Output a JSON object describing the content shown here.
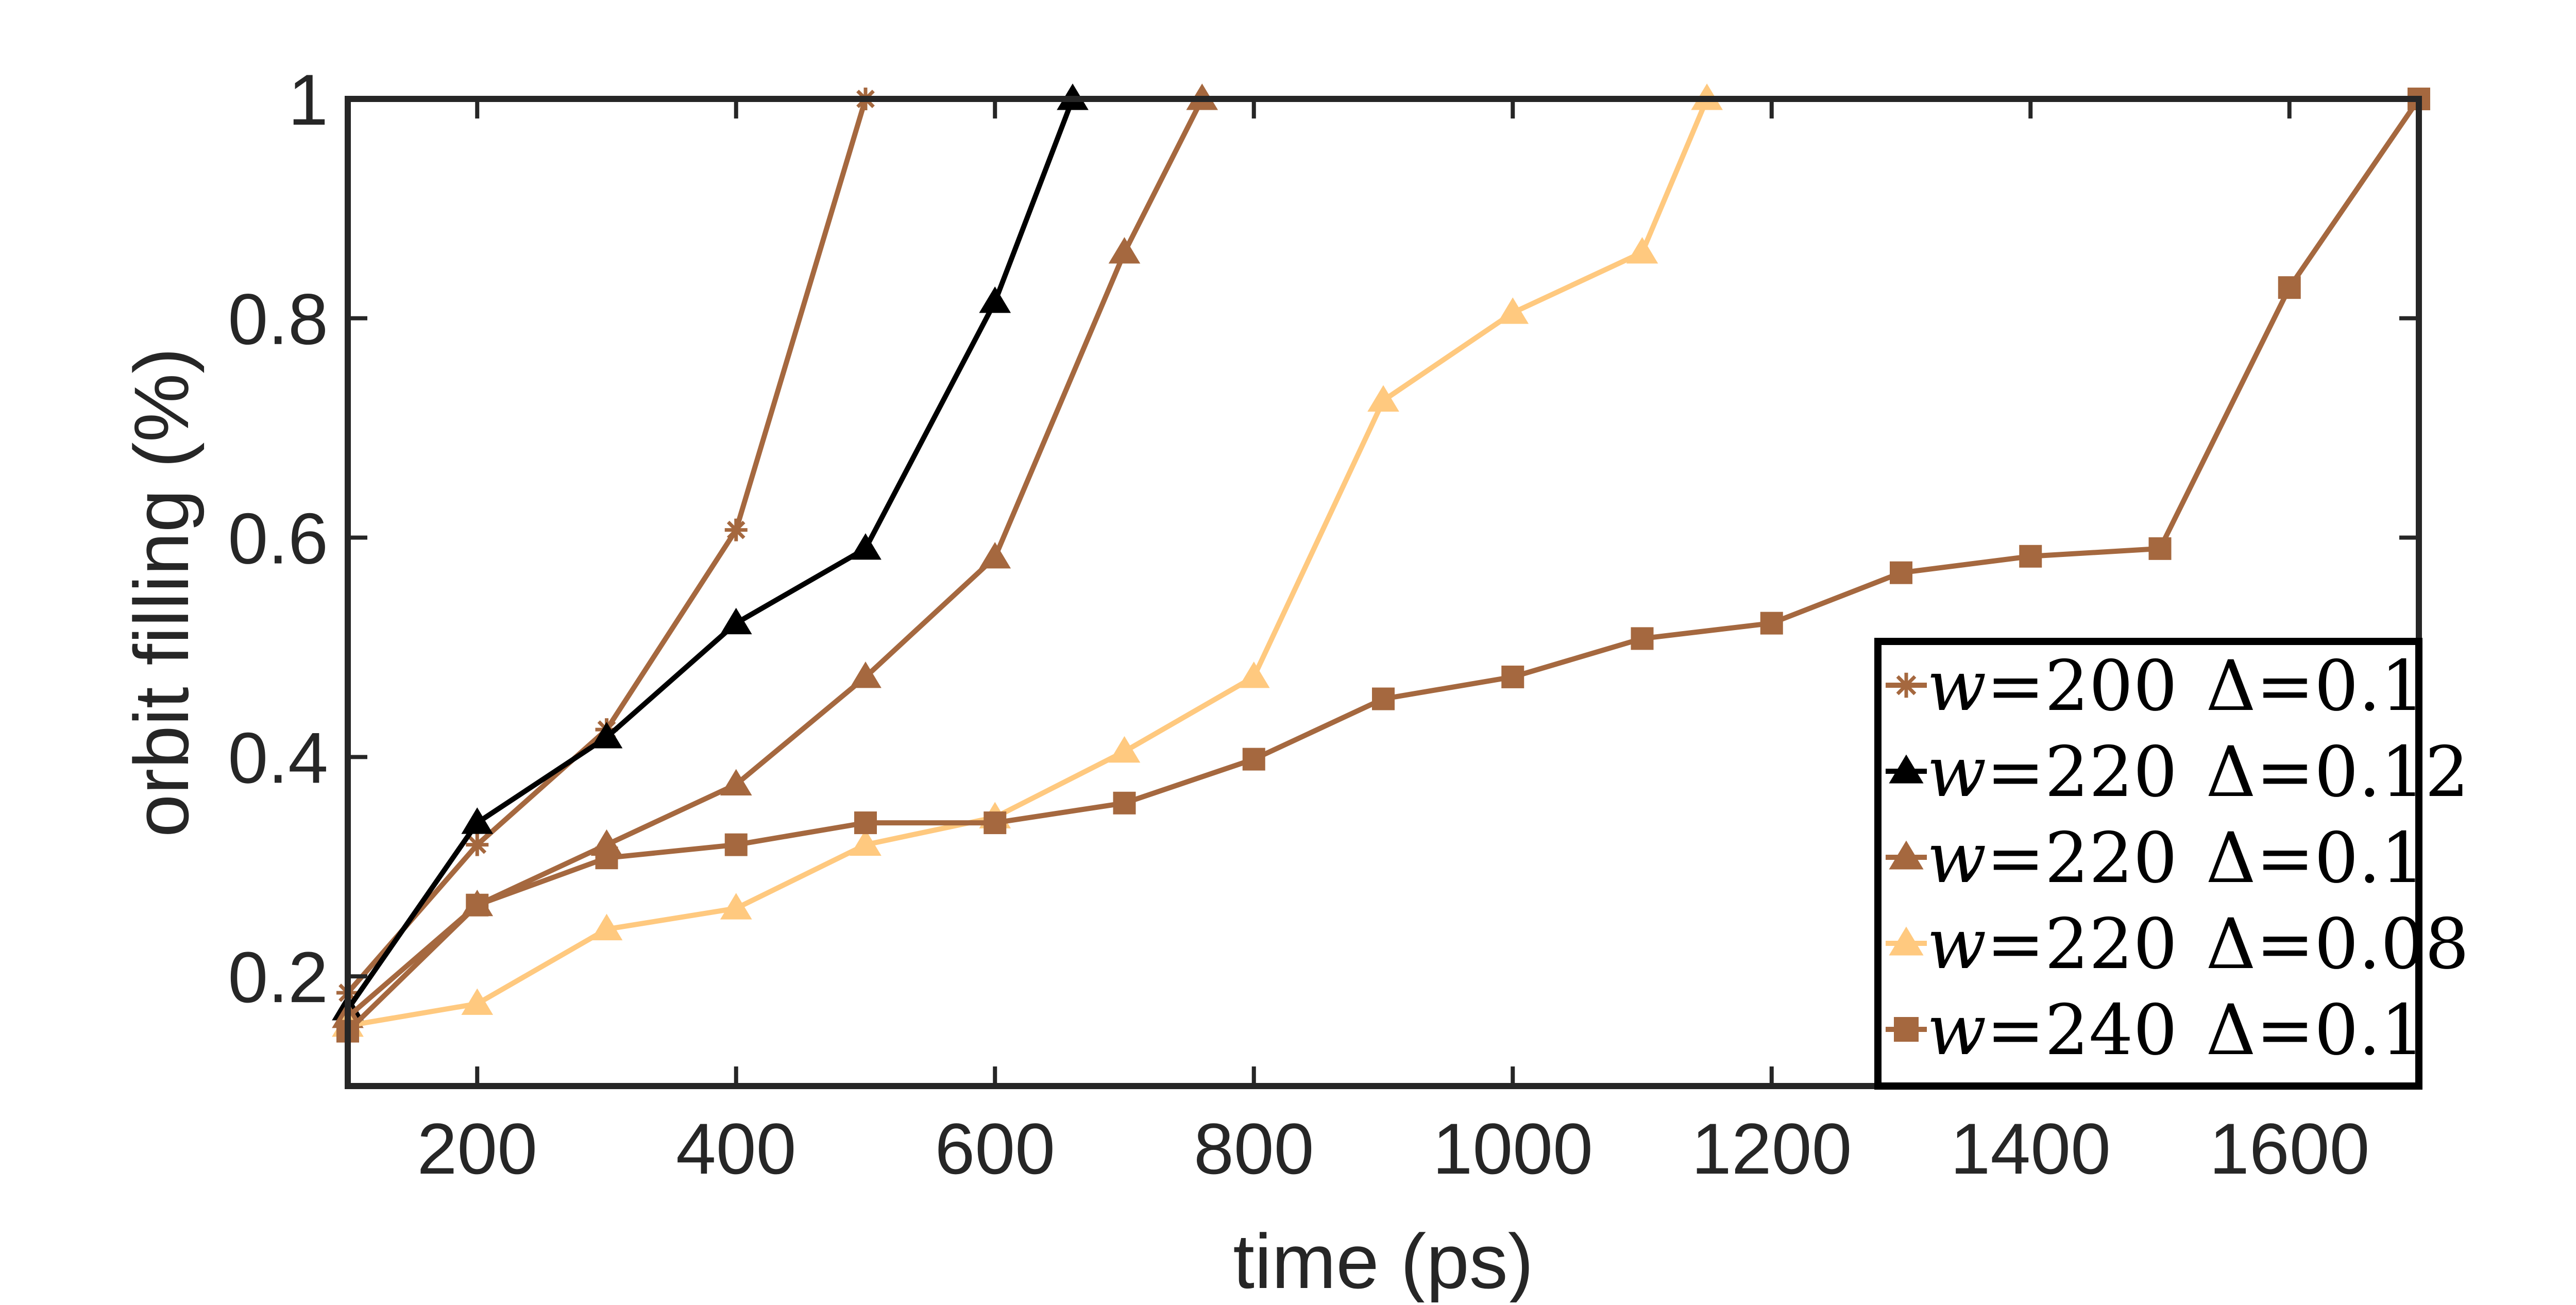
{
  "chart_data": {
    "type": "line",
    "title": "",
    "xlabel": "time (ps)",
    "ylabel": "orbit filling (%)",
    "xlim": [
      100,
      1700
    ],
    "ylim": [
      0.1,
      1.0
    ],
    "xticks": [
      200,
      400,
      600,
      800,
      1000,
      1200,
      1400,
      1600
    ],
    "xtick_labels": [
      "200",
      "400",
      "600",
      "800",
      "1000",
      "1200",
      "1400",
      "1600"
    ],
    "yticks": [
      0.2,
      0.4,
      0.6,
      0.8,
      1.0
    ],
    "ytick_labels": [
      "0.2",
      "0.4",
      "0.6",
      "0.8",
      "1"
    ],
    "grid": false,
    "legend_position": "bottom-right",
    "series": [
      {
        "name": "w=200 Δ=0.1",
        "label_w": "w",
        "label_w_value": "=200",
        "label_delta": "Δ",
        "label_delta_value": "=0.1",
        "color": "#A5683F",
        "marker": "star",
        "x": [
          100,
          200,
          300,
          400,
          500
        ],
        "y": [
          0.185,
          0.32,
          0.425,
          0.607,
          1.0
        ]
      },
      {
        "name": "w=220 Δ=0.12",
        "label_w": "w",
        "label_w_value": "=220",
        "label_delta": "Δ",
        "label_delta_value": "=0.12",
        "color": "#000000",
        "marker": "triangle",
        "x": [
          100,
          200,
          300,
          400,
          500,
          600,
          660
        ],
        "y": [
          0.17,
          0.34,
          0.418,
          0.522,
          0.59,
          0.815,
          1.0
        ]
      },
      {
        "name": "w=220 Δ=0.1",
        "label_w": "w",
        "label_w_value": "=220",
        "label_delta": "Δ",
        "label_delta_value": "=0.1",
        "color": "#A5683F",
        "marker": "triangle",
        "x": [
          100,
          200,
          300,
          400,
          500,
          600,
          700,
          760
        ],
        "y": [
          0.163,
          0.265,
          0.32,
          0.375,
          0.473,
          0.582,
          0.86,
          1.0
        ]
      },
      {
        "name": "w=220 Δ=0.08",
        "label_w": "w",
        "label_w_value": "=220",
        "label_delta": "Δ",
        "label_delta_value": "=0.08",
        "color": "#FFC97F",
        "marker": "triangle",
        "x": [
          100,
          200,
          300,
          400,
          500,
          600,
          700,
          800,
          900,
          1000,
          1100,
          1150
        ],
        "y": [
          0.155,
          0.175,
          0.243,
          0.262,
          0.32,
          0.345,
          0.405,
          0.473,
          0.725,
          0.805,
          0.86,
          1.0
        ]
      },
      {
        "name": "w=240 Δ=0.1",
        "label_w": "w",
        "label_w_value": "=240",
        "label_delta": "Δ",
        "label_delta_value": "=0.1",
        "color": "#A5683F",
        "marker": "square",
        "x": [
          100,
          200,
          300,
          400,
          500,
          600,
          700,
          800,
          900,
          1000,
          1100,
          1200,
          1300,
          1400,
          1500,
          1600,
          1700
        ],
        "y": [
          0.15,
          0.265,
          0.308,
          0.32,
          0.34,
          0.34,
          0.358,
          0.398,
          0.453,
          0.473,
          0.508,
          0.522,
          0.568,
          0.583,
          0.59,
          0.828,
          1.0
        ]
      }
    ]
  }
}
